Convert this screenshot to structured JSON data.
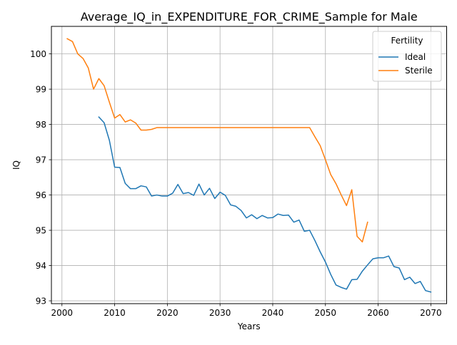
{
  "chart_data": {
    "type": "line",
    "title": "Average_IQ_in_EXPENDITURE_FOR_CRIME_Sample for Male",
    "xlabel": "Years",
    "ylabel": "IQ",
    "xlim": [
      1998,
      2073
    ],
    "ylim": [
      92.92,
      100.78
    ],
    "xticks": [
      2000,
      2010,
      2020,
      2030,
      2040,
      2050,
      2060,
      2070
    ],
    "yticks": [
      93,
      94,
      95,
      96,
      97,
      98,
      99,
      100
    ],
    "grid": true,
    "legend": {
      "title": "Fertility",
      "placement": "top-right"
    },
    "series": [
      {
        "name": "Ideal",
        "color": "#1f77b4",
        "x": [
          2007,
          2008,
          2009,
          2010,
          2011,
          2012,
          2013,
          2014,
          2015,
          2016,
          2017,
          2018,
          2019,
          2020,
          2021,
          2022,
          2023,
          2024,
          2025,
          2026,
          2027,
          2028,
          2029,
          2030,
          2031,
          2032,
          2033,
          2034,
          2035,
          2036,
          2037,
          2038,
          2039,
          2040,
          2041,
          2042,
          2043,
          2044,
          2045,
          2046,
          2047,
          2048,
          2049,
          2050,
          2051,
          2052,
          2053,
          2054,
          2055,
          2056,
          2057,
          2058,
          2059,
          2060,
          2061,
          2062,
          2063,
          2064,
          2065,
          2066,
          2067,
          2068,
          2069,
          2070
        ],
        "y": [
          98.21,
          98.05,
          97.55,
          96.79,
          96.78,
          96.33,
          96.18,
          96.18,
          96.26,
          96.23,
          95.97,
          96.0,
          95.97,
          95.97,
          96.05,
          96.3,
          96.04,
          96.07,
          95.99,
          96.31,
          96.0,
          96.19,
          95.9,
          96.08,
          95.99,
          95.72,
          95.68,
          95.56,
          95.35,
          95.44,
          95.33,
          95.42,
          95.35,
          95.36,
          95.46,
          95.42,
          95.43,
          95.23,
          95.29,
          94.97,
          95.0,
          94.71,
          94.39,
          94.1,
          93.75,
          93.45,
          93.38,
          93.33,
          93.6,
          93.61,
          93.84,
          94.02,
          94.19,
          94.22,
          94.22,
          94.27,
          93.97,
          93.93,
          93.6,
          93.67,
          93.49,
          93.55,
          93.29,
          93.25
        ]
      },
      {
        "name": "Sterile",
        "color": "#ff7f0e",
        "x": [
          2001,
          2002,
          2003,
          2004,
          2005,
          2006,
          2007,
          2008,
          2009,
          2010,
          2011,
          2012,
          2013,
          2014,
          2015,
          2016,
          2017,
          2018,
          2019,
          2020,
          2021,
          2022,
          2023,
          2024,
          2025,
          2026,
          2027,
          2028,
          2029,
          2030,
          2031,
          2032,
          2033,
          2034,
          2035,
          2036,
          2037,
          2038,
          2039,
          2040,
          2041,
          2042,
          2043,
          2044,
          2045,
          2046,
          2047,
          2048,
          2049,
          2050,
          2051,
          2052,
          2053,
          2054,
          2055,
          2056,
          2057,
          2058
        ],
        "y": [
          100.43,
          100.35,
          100.0,
          99.87,
          99.6,
          99.0,
          99.3,
          99.1,
          98.63,
          98.18,
          98.28,
          98.07,
          98.13,
          98.04,
          97.84,
          97.84,
          97.86,
          97.91,
          97.91,
          97.91,
          97.91,
          97.91,
          97.91,
          97.91,
          97.91,
          97.91,
          97.91,
          97.91,
          97.91,
          97.91,
          97.91,
          97.91,
          97.91,
          97.91,
          97.91,
          97.91,
          97.91,
          97.91,
          97.91,
          97.91,
          97.91,
          97.91,
          97.91,
          97.91,
          97.91,
          97.91,
          97.91,
          97.65,
          97.4,
          97.0,
          96.58,
          96.32,
          96.0,
          95.7,
          96.15,
          94.83,
          94.67,
          95.23
        ]
      }
    ]
  }
}
